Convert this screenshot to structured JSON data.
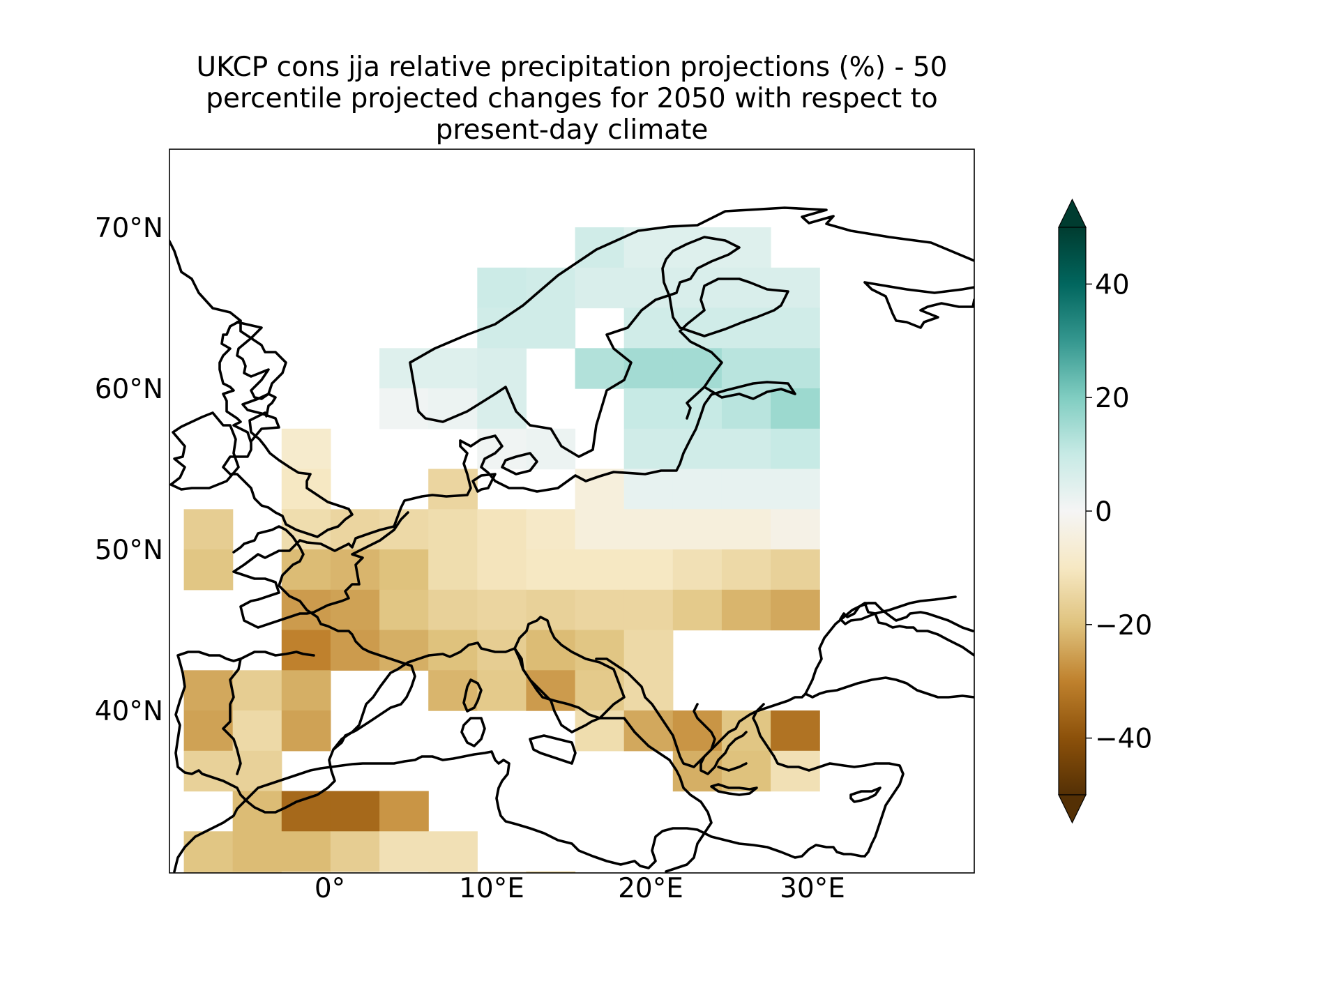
{
  "chart_data": {
    "type": "heatmap",
    "title": "UKCP cons jja relative precipitation projections (%) - 50 percentile projected changes for 2050 with respect to present-day climate",
    "title_lines": [
      "UKCP cons jja relative precipitation projections (%) - 50",
      "percentile projected changes for 2050 with respect to",
      "present-day climate"
    ],
    "x_tick_labels": [
      "0°",
      "10°E",
      "20°E",
      "30°E"
    ],
    "y_tick_labels": [
      "70°N",
      "60°N",
      "50°N",
      "40°N"
    ],
    "colorbar": {
      "colormap": "BrBG",
      "range": [
        -50,
        50
      ],
      "extend": "both",
      "tick_values": [
        40,
        20,
        0,
        -20,
        -40
      ],
      "tick_labels": [
        "40",
        "20",
        "0",
        "−20",
        "−40"
      ]
    },
    "grid": {
      "lon_start": -11.2,
      "lon_step": 3.75,
      "lat_start": 72.5,
      "lat_step": -2.5,
      "values": [
        [
          null,
          null,
          null,
          null,
          null,
          null,
          null,
          null,
          null,
          null,
          null,
          null,
          null
        ],
        [
          null,
          null,
          null,
          null,
          null,
          null,
          null,
          null,
          8,
          5,
          5,
          5,
          null
        ],
        [
          null,
          null,
          null,
          null,
          null,
          null,
          9,
          8,
          6,
          6,
          6,
          6,
          6
        ],
        [
          null,
          null,
          null,
          null,
          null,
          null,
          8,
          8,
          null,
          8,
          8,
          8,
          8
        ],
        [
          null,
          null,
          null,
          null,
          5,
          5,
          6,
          null,
          13,
          15,
          15,
          12,
          12
        ],
        [
          null,
          null,
          null,
          null,
          1,
          2,
          6,
          null,
          null,
          10,
          10,
          12,
          16
        ],
        [
          null,
          null,
          -8,
          null,
          null,
          null,
          1,
          2,
          null,
          8,
          8,
          8,
          10
        ],
        [
          null,
          null,
          -10,
          null,
          null,
          -15,
          null,
          null,
          -5,
          3,
          3,
          3,
          3
        ],
        [
          -17,
          null,
          -13,
          -15,
          -14,
          -13,
          -11,
          -9,
          -5,
          -5,
          -5,
          -5,
          -3
        ],
        [
          -19,
          null,
          -21,
          -22,
          -20,
          -13,
          -11,
          -10,
          -10,
          -10,
          -12,
          -14,
          -16
        ],
        [
          null,
          null,
          -26,
          -25,
          -19,
          -16,
          -15,
          -16,
          -15,
          -15,
          -18,
          -22,
          -24
        ],
        [
          null,
          null,
          -30,
          -26,
          -23,
          -20,
          -17,
          -21,
          -19,
          -14,
          null,
          null,
          null
        ],
        [
          -24,
          -17,
          -23,
          null,
          null,
          -22,
          -18,
          -26,
          -18,
          -14,
          null,
          null,
          null
        ],
        [
          -25,
          -14,
          -25,
          null,
          null,
          null,
          null,
          null,
          -13,
          -24,
          -27,
          -19,
          -33
        ],
        [
          -16,
          -16,
          null,
          null,
          null,
          null,
          null,
          null,
          null,
          null,
          -23,
          -20,
          -12
        ],
        [
          null,
          -21,
          -35,
          -35,
          -27,
          null,
          null,
          null,
          null,
          null,
          null,
          null,
          null
        ],
        [
          -19,
          -21,
          -21,
          -17,
          -12,
          -12,
          null,
          null,
          null,
          null,
          null,
          null,
          null
        ],
        [
          -17,
          -17,
          -11,
          -7,
          -5,
          -10,
          -9,
          -19,
          null,
          null,
          null,
          null,
          null
        ]
      ]
    }
  }
}
